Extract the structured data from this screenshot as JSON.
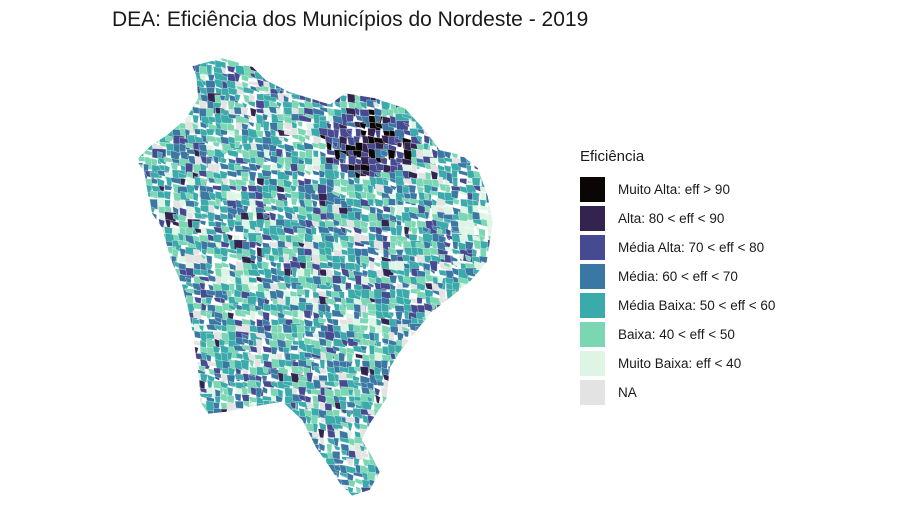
{
  "title": "DEA: Eficiência dos Municípios do Nordeste - 2019",
  "legend": {
    "title": "Eficiência",
    "items": [
      {
        "label": "Muito Alta: eff > 90",
        "color": "#0b0606"
      },
      {
        "label": "Alta: 80 < eff < 90",
        "color": "#33244f"
      },
      {
        "label": "Média Alta: 70 < eff < 80",
        "color": "#454a91"
      },
      {
        "label": "Média: 60 < eff < 70",
        "color": "#3a78a3"
      },
      {
        "label": "Média Baixa: 50 < eff < 60",
        "color": "#3aabaa"
      },
      {
        "label": "Baixa: 40 < eff < 50",
        "color": "#7ad6b3"
      },
      {
        "label": "Muito Baixa: eff < 40",
        "color": "#def5e6"
      },
      {
        "label": "NA",
        "color": "#e3e3e3"
      }
    ]
  }
}
